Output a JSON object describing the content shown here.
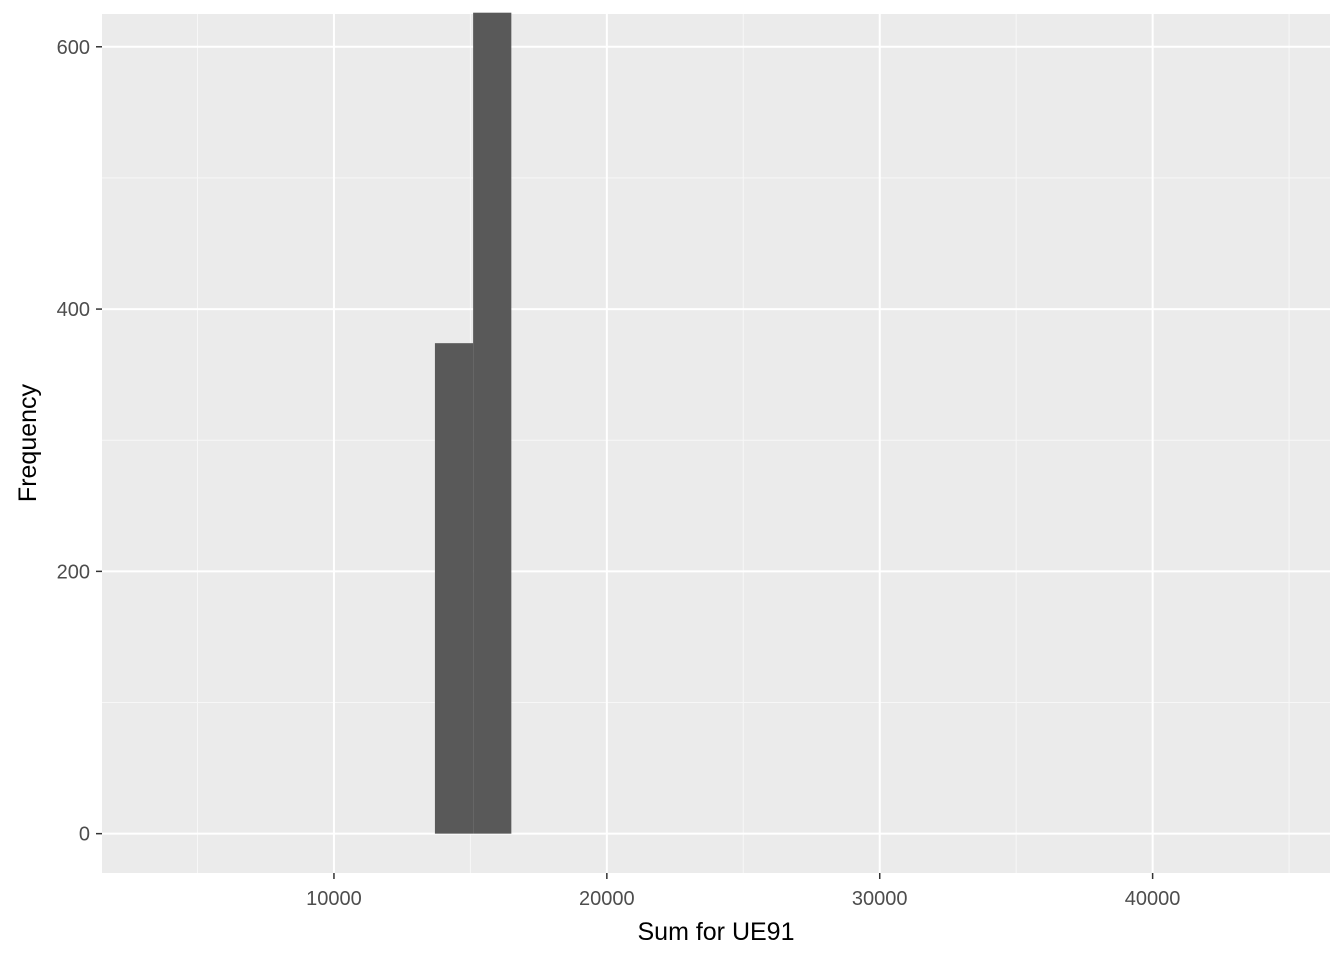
{
  "chart_data": {
    "type": "bar",
    "title": "",
    "xlabel": "Sum for UE91",
    "ylabel": "Frequency",
    "xlim": [
      1500,
      46500
    ],
    "ylim": [
      -30,
      625
    ],
    "x_ticks": [
      10000,
      20000,
      30000,
      40000
    ],
    "x_tick_labels": [
      "10000",
      "20000",
      "30000",
      "40000"
    ],
    "y_ticks": [
      0,
      200,
      400,
      600
    ],
    "y_tick_labels": [
      "0",
      "200",
      "400",
      "600"
    ],
    "bins": [
      {
        "x_start": 13700,
        "x_end": 15100,
        "count": 374
      },
      {
        "x_start": 15100,
        "x_end": 16500,
        "count": 626
      }
    ],
    "grid": true,
    "colors": {
      "panel_background": "#ebebeb",
      "grid_major": "#ffffff",
      "grid_minor": "#f7f7f7",
      "bar_fill": "#595959"
    }
  }
}
